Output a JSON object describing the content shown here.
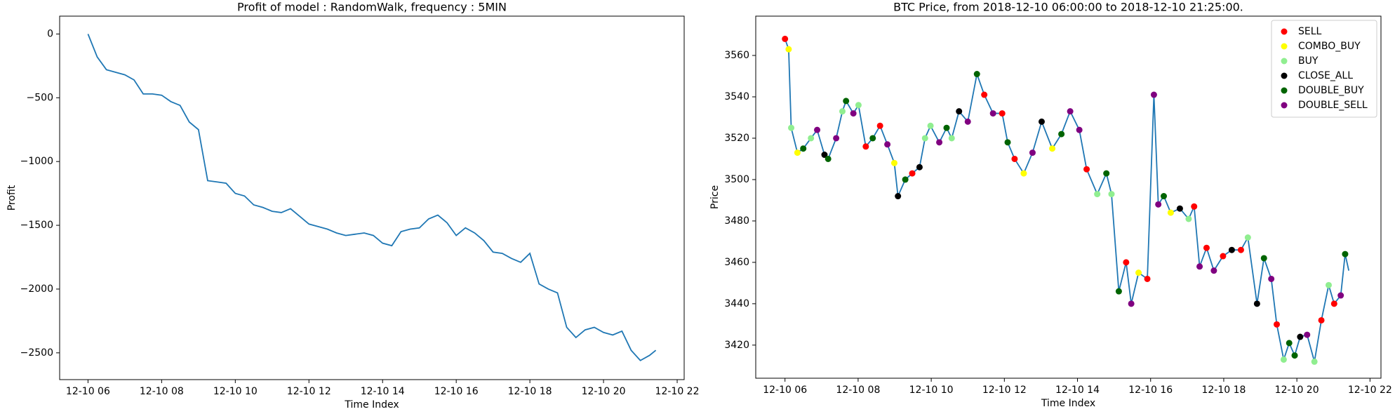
{
  "chart_data": [
    {
      "type": "line",
      "title": "Profit of model : RandomWalk, frequency : 5MIN",
      "xlabel": "Time Index",
      "ylabel": "Profit",
      "color": "#1f77b4",
      "x": [
        6.0,
        6.25,
        6.5,
        6.75,
        7.0,
        7.25,
        7.5,
        7.75,
        8.0,
        8.25,
        8.5,
        8.75,
        9.0,
        9.25,
        9.5,
        9.75,
        10.0,
        10.25,
        10.5,
        10.75,
        11.0,
        11.25,
        11.5,
        11.75,
        12.0,
        12.25,
        12.5,
        12.75,
        13.0,
        13.25,
        13.5,
        13.75,
        14.0,
        14.25,
        14.5,
        14.75,
        15.0,
        15.25,
        15.5,
        15.75,
        16.0,
        16.25,
        16.5,
        16.75,
        17.0,
        17.25,
        17.5,
        17.75,
        18.0,
        18.25,
        18.5,
        18.75,
        19.0,
        19.25,
        19.5,
        19.75,
        20.0,
        20.25,
        20.5,
        20.75,
        21.0,
        21.25,
        21.42
      ],
      "values": [
        0,
        -180,
        -280,
        -300,
        -320,
        -360,
        -470,
        -470,
        -480,
        -530,
        -560,
        -690,
        -750,
        -1150,
        -1160,
        -1170,
        -1250,
        -1270,
        -1340,
        -1360,
        -1390,
        -1400,
        -1370,
        -1430,
        -1490,
        -1510,
        -1530,
        -1560,
        -1580,
        -1570,
        -1560,
        -1580,
        -1640,
        -1660,
        -1550,
        -1530,
        -1520,
        -1450,
        -1420,
        -1480,
        -1580,
        -1520,
        -1560,
        -1620,
        -1710,
        -1720,
        -1760,
        -1790,
        -1720,
        -1960,
        -2000,
        -2030,
        -2300,
        -2380,
        -2320,
        -2300,
        -2340,
        -2360,
        -2330,
        -2480,
        -2560,
        -2520,
        -2480
      ],
      "xlim": [
        5.23,
        22.19
      ],
      "ylim": [
        -2710,
        140
      ],
      "xticks": [
        {
          "value": 6,
          "label": "12-10 06"
        },
        {
          "value": 8,
          "label": "12-10 08"
        },
        {
          "value": 10,
          "label": "12-10 10"
        },
        {
          "value": 12,
          "label": "12-10 12"
        },
        {
          "value": 14,
          "label": "12-10 14"
        },
        {
          "value": 16,
          "label": "12-10 16"
        },
        {
          "value": 18,
          "label": "12-10 18"
        },
        {
          "value": 20,
          "label": "12-10 20"
        },
        {
          "value": 22,
          "label": "12-10 22"
        }
      ],
      "yticks": [
        {
          "value": -2500,
          "label": "−2500"
        },
        {
          "value": -2000,
          "label": "−2000"
        },
        {
          "value": -1500,
          "label": "−1500"
        },
        {
          "value": -1000,
          "label": "−1000"
        },
        {
          "value": -500,
          "label": "−500"
        },
        0
      ]
    },
    {
      "type": "line",
      "title": "BTC Price, from 2018-12-10 06:00:00 to 2018-12-10 21:25:00.",
      "xlabel": "Time Index",
      "ylabel": "Price",
      "color": "#1f77b4",
      "legend": "upper right",
      "x": [
        6.0,
        6.1,
        6.17,
        6.34,
        6.5,
        6.71,
        6.88,
        7.08,
        7.18,
        7.4,
        7.57,
        7.67,
        7.87,
        8.01,
        8.21,
        8.4,
        8.6,
        8.8,
        8.99,
        9.09,
        9.29,
        9.48,
        9.68,
        9.83,
        9.98,
        10.22,
        10.42,
        10.56,
        10.76,
        11.0,
        11.25,
        11.45,
        11.69,
        11.94,
        12.09,
        12.28,
        12.53,
        12.77,
        13.02,
        13.31,
        13.56,
        13.8,
        14.05,
        14.25,
        14.54,
        14.79,
        14.93,
        15.13,
        15.33,
        15.47,
        15.67,
        15.91,
        16.09,
        16.21,
        16.36,
        16.55,
        16.8,
        17.04,
        17.19,
        17.34,
        17.53,
        17.73,
        17.98,
        18.22,
        18.47,
        18.66,
        18.91,
        19.1,
        19.3,
        19.45,
        19.64,
        19.79,
        19.94,
        20.09,
        20.28,
        20.48,
        20.67,
        20.87,
        21.02,
        21.2,
        21.32,
        21.42
      ],
      "values": [
        3568,
        3563,
        3525,
        3513,
        3515,
        3520,
        3524,
        3512,
        3510,
        3520,
        3533,
        3538,
        3532,
        3536,
        3516,
        3520,
        3526,
        3517,
        3508,
        3492,
        3500,
        3503,
        3506,
        3520,
        3526,
        3518,
        3525,
        3520,
        3533,
        3528,
        3551,
        3541,
        3532,
        3532,
        3518,
        3510,
        3503,
        3513,
        3528,
        3515,
        3522,
        3533,
        3524,
        3505,
        3493,
        3503,
        3493,
        3446,
        3460,
        3440,
        3455,
        3452,
        3541,
        3488,
        3492,
        3484,
        3486,
        3481,
        3487,
        3458,
        3467,
        3456,
        3463,
        3466,
        3466,
        3472,
        3440,
        3462,
        3452,
        3430,
        3413,
        3421,
        3415,
        3424,
        3425,
        3412,
        3432,
        3449,
        3440,
        3444,
        3464,
        3456
      ],
      "scatter": [
        {
          "name": "SELL",
          "color": "#ff0000",
          "x": [
            6.0,
            8.21,
            8.6,
            9.48,
            11.45,
            11.94,
            12.28,
            14.25,
            15.33,
            15.91,
            17.19,
            17.53,
            17.98,
            18.47,
            19.45,
            20.67,
            21.02
          ],
          "values": [
            3568,
            3516,
            3526,
            3503,
            3541,
            3532,
            3510,
            3505,
            3460,
            3452,
            3487,
            3467,
            3463,
            3466,
            3430,
            3432,
            3440
          ]
        },
        {
          "name": "COMBO_BUY",
          "color": "#ffff00",
          "x": [
            6.1,
            6.34,
            8.99,
            12.53,
            13.31,
            15.67,
            16.55
          ],
          "values": [
            3563,
            3513,
            3508,
            3503,
            3515,
            3455,
            3484
          ]
        },
        {
          "name": "BUY",
          "color": "#90ee90",
          "x": [
            6.17,
            6.71,
            7.57,
            8.01,
            9.83,
            9.98,
            10.56,
            14.54,
            14.93,
            17.04,
            18.66,
            19.64,
            20.48,
            20.87
          ],
          "values": [
            3525,
            3520,
            3533,
            3536,
            3520,
            3526,
            3520,
            3493,
            3493,
            3481,
            3472,
            3413,
            3412,
            3449
          ]
        },
        {
          "name": "CLOSE_ALL",
          "color": "#000000",
          "x": [
            7.08,
            9.09,
            9.68,
            10.76,
            13.02,
            16.8,
            18.22,
            18.91,
            20.09
          ],
          "values": [
            3512,
            3492,
            3506,
            3533,
            3528,
            3486,
            3466,
            3440,
            3424
          ]
        },
        {
          "name": "DOUBLE_BUY",
          "color": "#006400",
          "x": [
            6.5,
            7.18,
            7.67,
            8.4,
            9.29,
            10.42,
            11.25,
            12.09,
            13.56,
            14.79,
            15.13,
            16.36,
            19.1,
            19.79,
            19.94,
            21.32
          ],
          "values": [
            3515,
            3510,
            3538,
            3520,
            3500,
            3525,
            3551,
            3518,
            3522,
            3503,
            3446,
            3492,
            3462,
            3421,
            3415,
            3464
          ]
        },
        {
          "name": "DOUBLE_SELL",
          "color": "#800080",
          "x": [
            6.88,
            7.4,
            7.87,
            8.8,
            10.22,
            11.0,
            11.69,
            12.77,
            13.8,
            14.05,
            15.47,
            16.09,
            16.21,
            17.34,
            17.73,
            19.3,
            20.28,
            21.2
          ],
          "values": [
            3524,
            3520,
            3532,
            3517,
            3518,
            3528,
            3532,
            3513,
            3533,
            3524,
            3440,
            3541,
            3488,
            3458,
            3456,
            3452,
            3425,
            3444
          ]
        }
      ],
      "xlim": [
        5.2,
        22.3
      ],
      "ylim": [
        3404,
        3579
      ],
      "xticks": [
        {
          "value": 6,
          "label": "12-10 06"
        },
        {
          "value": 8,
          "label": "12-10 08"
        },
        {
          "value": 10,
          "label": "12-10 10"
        },
        {
          "value": 12,
          "label": "12-10 12"
        },
        {
          "value": 14,
          "label": "12-10 14"
        },
        {
          "value": 16,
          "label": "12-10 16"
        },
        {
          "value": 18,
          "label": "12-10 18"
        },
        {
          "value": 20,
          "label": "12-10 20"
        },
        {
          "value": 22,
          "label": "12-10 22"
        }
      ],
      "yticks": [
        3420,
        3440,
        3460,
        3480,
        3500,
        3520,
        3540,
        3560
      ]
    }
  ]
}
